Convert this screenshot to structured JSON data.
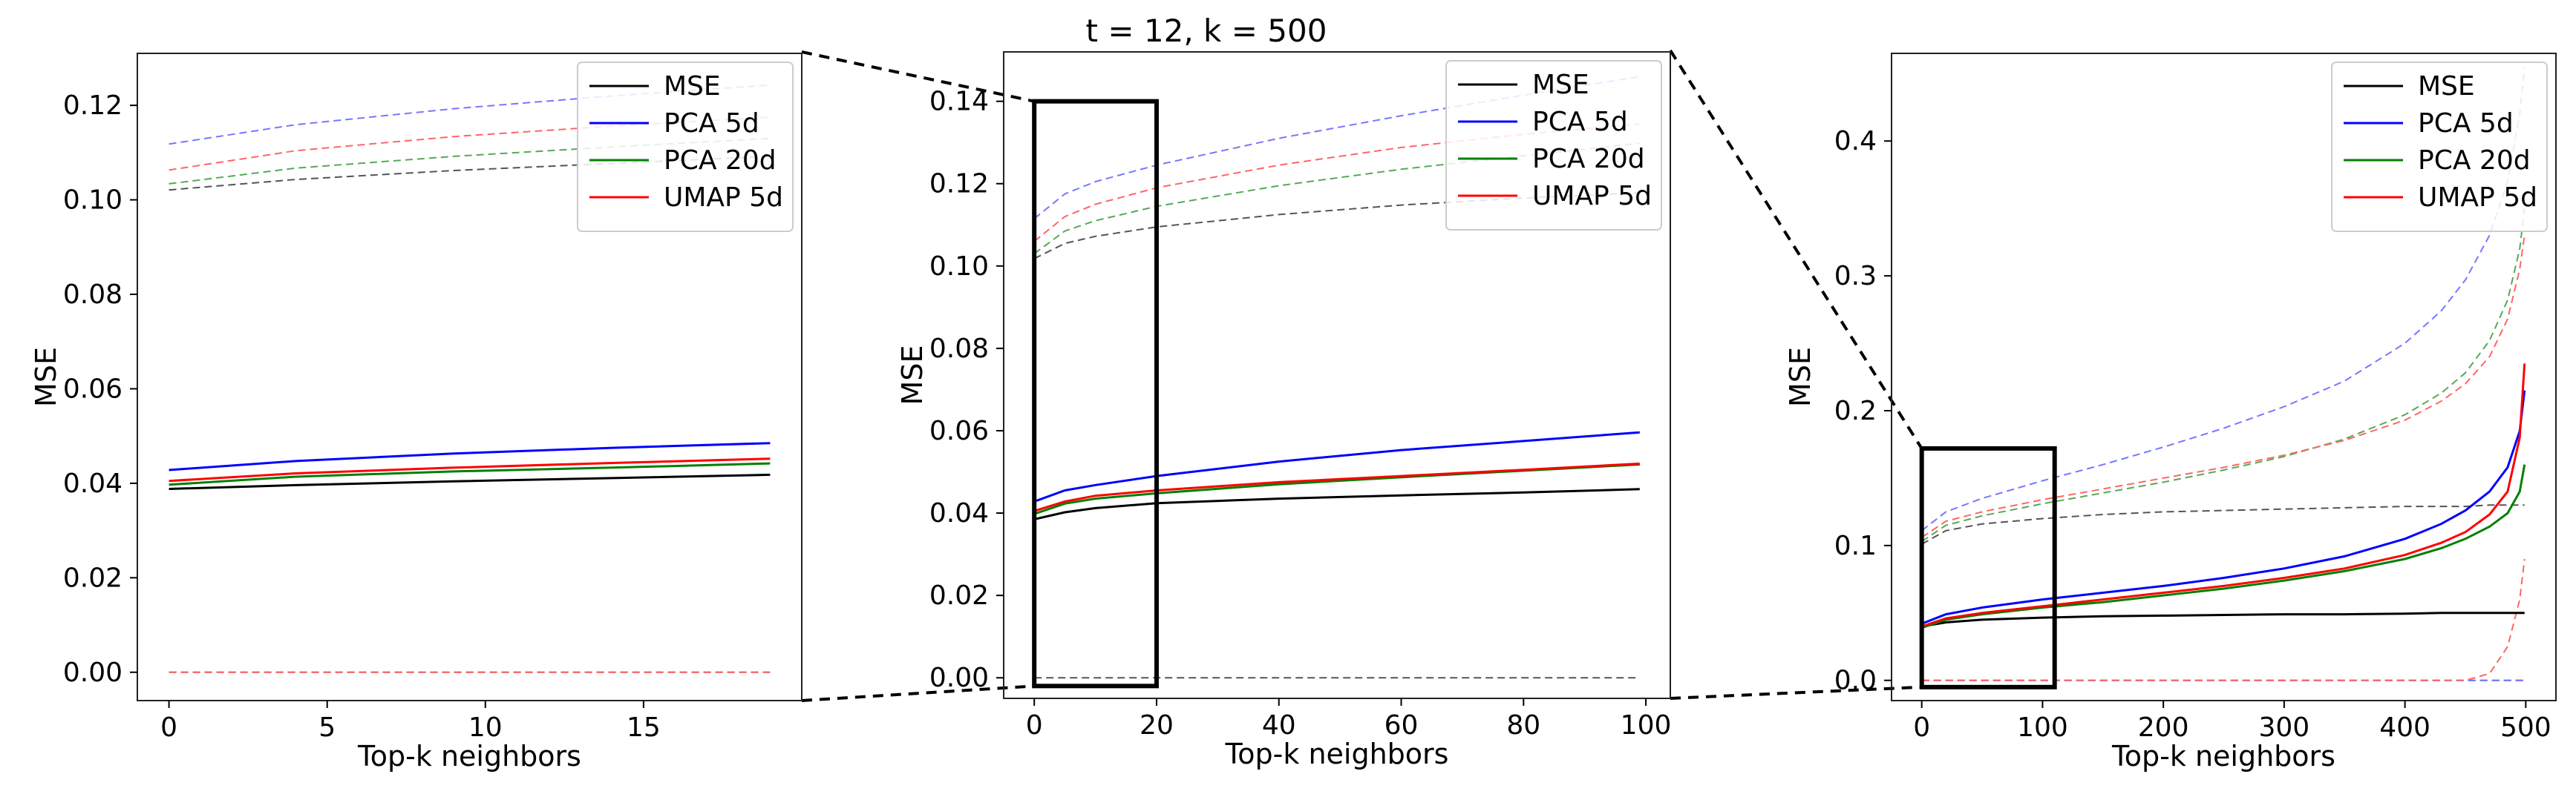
{
  "suptitle": "t = 12, k = 500",
  "legend": [
    {
      "label": "MSE",
      "color": "#000000"
    },
    {
      "label": "PCA 5d",
      "color": "#0000ff"
    },
    {
      "label": "PCA 20d",
      "color": "#008000"
    },
    {
      "label": "UMAP 5d",
      "color": "#ff0000"
    }
  ],
  "chart_data": [
    {
      "type": "line",
      "title": "",
      "xlabel": "Top-k neighbors",
      "ylabel": "MSE",
      "xlim": [
        -1,
        20
      ],
      "ylim": [
        -0.006,
        0.131
      ],
      "xticks": [
        0,
        5,
        10,
        15
      ],
      "xtick_labels": [
        "0",
        "5",
        "10",
        "15"
      ],
      "yticks": [
        0.0,
        0.02,
        0.04,
        0.06,
        0.08,
        0.1,
        0.12
      ],
      "ytick_labels": [
        "0.00",
        "0.02",
        "0.04",
        "0.06",
        "0.08",
        "0.10",
        "0.12"
      ],
      "x": [
        0,
        4,
        9,
        14,
        19
      ],
      "series": [
        {
          "name": "MSE",
          "style": "solid",
          "color": "#000000",
          "values": [
            0.0388,
            0.0396,
            0.0404,
            0.0411,
            0.0418
          ]
        },
        {
          "name": "PCA 5d",
          "style": "solid",
          "color": "#0000ff",
          "values": [
            0.0428,
            0.0447,
            0.0463,
            0.0475,
            0.0485
          ]
        },
        {
          "name": "PCA 20d",
          "style": "solid",
          "color": "#008000",
          "values": [
            0.0397,
            0.0414,
            0.0425,
            0.0433,
            0.0442
          ]
        },
        {
          "name": "UMAP 5d",
          "style": "solid",
          "color": "#ff0000",
          "values": [
            0.0405,
            0.0421,
            0.0433,
            0.0443,
            0.0452
          ]
        },
        {
          "name": "MSE (dashed)",
          "style": "dashed",
          "color": "#555555",
          "values": [
            0.1021,
            0.1043,
            0.1062,
            0.1077,
            0.1092
          ]
        },
        {
          "name": "PCA 5d (dashed)",
          "style": "dashed",
          "color": "#7777ff",
          "values": [
            0.1118,
            0.1159,
            0.1193,
            0.122,
            0.1243
          ]
        },
        {
          "name": "PCA 20d (dashed)",
          "style": "dashed",
          "color": "#55aa55",
          "values": [
            0.1034,
            0.1067,
            0.1092,
            0.1112,
            0.113
          ]
        },
        {
          "name": "UMAP 5d (dashed)",
          "style": "dashed",
          "color": "#ff6666",
          "values": [
            0.1063,
            0.1104,
            0.1134,
            0.1156,
            0.1175
          ]
        },
        {
          "name": "baseline (dashed)",
          "style": "dashed",
          "color": "#555555",
          "values": [
            0.0,
            0.0,
            0.0,
            0.0,
            0.0
          ]
        },
        {
          "name": "baseline red (dashed)",
          "style": "dashed",
          "color": "#ff6666",
          "values": [
            0.0,
            0.0,
            0.0,
            0.0,
            0.0
          ]
        }
      ]
    },
    {
      "type": "line",
      "title": "t = 12, k = 500",
      "xlabel": "Top-k neighbors",
      "ylabel": "MSE",
      "xlim": [
        -5,
        104
      ],
      "ylim": [
        -0.005,
        0.152
      ],
      "xticks": [
        0,
        20,
        40,
        60,
        80,
        100
      ],
      "xtick_labels": [
        "0",
        "20",
        "40",
        "60",
        "80",
        "100"
      ],
      "yticks": [
        0.0,
        0.02,
        0.04,
        0.06,
        0.08,
        0.1,
        0.12,
        0.14
      ],
      "ytick_labels": [
        "0.00",
        "0.02",
        "0.04",
        "0.06",
        "0.08",
        "0.10",
        "0.12",
        "0.14"
      ],
      "x": [
        0,
        5,
        10,
        20,
        40,
        60,
        80,
        99
      ],
      "series": [
        {
          "name": "MSE",
          "style": "solid",
          "color": "#000000",
          "values": [
            0.0385,
            0.0402,
            0.0412,
            0.0424,
            0.0435,
            0.0443,
            0.045,
            0.0458
          ]
        },
        {
          "name": "PCA 5d",
          "style": "solid",
          "color": "#0000ff",
          "values": [
            0.0428,
            0.0455,
            0.0468,
            0.049,
            0.0525,
            0.0553,
            0.0575,
            0.0596
          ]
        },
        {
          "name": "PCA 20d",
          "style": "solid",
          "color": "#008000",
          "values": [
            0.0398,
            0.0423,
            0.0435,
            0.0448,
            0.047,
            0.0487,
            0.0503,
            0.0518
          ]
        },
        {
          "name": "UMAP 5d",
          "style": "solid",
          "color": "#ff0000",
          "values": [
            0.0405,
            0.0428,
            0.0442,
            0.0455,
            0.0475,
            0.049,
            0.0505,
            0.052
          ]
        },
        {
          "name": "MSE (dashed)",
          "style": "dashed",
          "color": "#555555",
          "values": [
            0.1018,
            0.1055,
            0.1072,
            0.1095,
            0.1125,
            0.1148,
            0.1165,
            0.1178
          ]
        },
        {
          "name": "PCA 5d (dashed)",
          "style": "dashed",
          "color": "#7777ff",
          "values": [
            0.1115,
            0.1175,
            0.1205,
            0.1245,
            0.131,
            0.1365,
            0.1415,
            0.146
          ]
        },
        {
          "name": "PCA 20d (dashed)",
          "style": "dashed",
          "color": "#55aa55",
          "values": [
            0.103,
            0.1085,
            0.111,
            0.1145,
            0.1195,
            0.1235,
            0.1268,
            0.1298
          ]
        },
        {
          "name": "UMAP 5d (dashed)",
          "style": "dashed",
          "color": "#ff6666",
          "values": [
            0.106,
            0.112,
            0.115,
            0.119,
            0.1245,
            0.1288,
            0.132,
            0.1345
          ]
        },
        {
          "name": "baseline (dashed)",
          "style": "dashed",
          "color": "#555555",
          "values": [
            0.0,
            0.0,
            0.0,
            0.0,
            0.0,
            0.0,
            0.0,
            0.0
          ]
        }
      ],
      "zoom_box": {
        "x": [
          0,
          20
        ],
        "y": [
          -0.002,
          0.14
        ]
      }
    },
    {
      "type": "line",
      "title": "",
      "xlabel": "Top-k neighbors",
      "ylabel": "MSE",
      "xlim": [
        -25,
        525
      ],
      "ylim": [
        -0.015,
        0.465
      ],
      "xticks": [
        0,
        100,
        200,
        300,
        400,
        500
      ],
      "xtick_labels": [
        "0",
        "100",
        "200",
        "300",
        "400",
        "500"
      ],
      "yticks": [
        0.0,
        0.1,
        0.2,
        0.3,
        0.4
      ],
      "ytick_labels": [
        "0.0",
        "0.1",
        "0.2",
        "0.3",
        "0.4"
      ],
      "x": [
        0,
        20,
        50,
        100,
        150,
        200,
        250,
        300,
        350,
        400,
        430,
        450,
        470,
        485,
        495,
        499
      ],
      "series": [
        {
          "name": "MSE",
          "style": "solid",
          "color": "#000000",
          "values": [
            0.04,
            0.043,
            0.045,
            0.0465,
            0.0475,
            0.048,
            0.0485,
            0.049,
            0.049,
            0.0495,
            0.05,
            0.05,
            0.05,
            0.05,
            0.05,
            0.05
          ]
        },
        {
          "name": "PCA 5d",
          "style": "solid",
          "color": "#0000ff",
          "values": [
            0.042,
            0.049,
            0.054,
            0.06,
            0.065,
            0.07,
            0.076,
            0.083,
            0.092,
            0.105,
            0.116,
            0.126,
            0.14,
            0.158,
            0.185,
            0.215
          ]
        },
        {
          "name": "PCA 20d",
          "style": "solid",
          "color": "#008000",
          "values": [
            0.039,
            0.045,
            0.049,
            0.054,
            0.058,
            0.063,
            0.068,
            0.074,
            0.081,
            0.09,
            0.098,
            0.105,
            0.114,
            0.124,
            0.14,
            0.16
          ]
        },
        {
          "name": "UMAP 5d",
          "style": "solid",
          "color": "#ff0000",
          "values": [
            0.04,
            0.046,
            0.05,
            0.055,
            0.06,
            0.065,
            0.07,
            0.076,
            0.083,
            0.093,
            0.102,
            0.11,
            0.123,
            0.14,
            0.18,
            0.235
          ]
        },
        {
          "name": "MSE (dashed)",
          "style": "dashed",
          "color": "#555555",
          "values": [
            0.101,
            0.111,
            0.116,
            0.12,
            0.123,
            0.125,
            0.126,
            0.127,
            0.128,
            0.129,
            0.129,
            0.129,
            0.13,
            0.13,
            0.13,
            0.13
          ]
        },
        {
          "name": "PCA 5d (dashed)",
          "style": "dashed",
          "color": "#7777ff",
          "values": [
            0.111,
            0.125,
            0.135,
            0.148,
            0.16,
            0.173,
            0.187,
            0.203,
            0.222,
            0.25,
            0.274,
            0.297,
            0.33,
            0.37,
            0.42,
            0.455
          ]
        },
        {
          "name": "PCA 20d (dashed)",
          "style": "dashed",
          "color": "#55aa55",
          "values": [
            0.103,
            0.115,
            0.122,
            0.131,
            0.139,
            0.147,
            0.156,
            0.166,
            0.179,
            0.197,
            0.213,
            0.228,
            0.252,
            0.282,
            0.32,
            0.35
          ]
        },
        {
          "name": "UMAP 5d (dashed)",
          "style": "dashed",
          "color": "#ff6666",
          "values": [
            0.106,
            0.118,
            0.125,
            0.134,
            0.142,
            0.15,
            0.158,
            0.167,
            0.178,
            0.193,
            0.207,
            0.22,
            0.24,
            0.268,
            0.305,
            0.33
          ]
        },
        {
          "name": "baseline (dashed)",
          "style": "dashed",
          "color": "#555555",
          "values": [
            0.0,
            0.0,
            0.0,
            0.0,
            0.0,
            0.0,
            0.0,
            0.0,
            0.0,
            0.0,
            0.0,
            0.0,
            0.0,
            0.0,
            0.0,
            0.0
          ]
        },
        {
          "name": "baseline blue (dashed)",
          "style": "dashed",
          "color": "#7777ff",
          "values": [
            0.0,
            0.0,
            0.0,
            0.0,
            0.0,
            0.0,
            0.0,
            0.0,
            0.0,
            0.0,
            0.0,
            0.0,
            0.0,
            0.0,
            0.0,
            0.0
          ]
        },
        {
          "name": "UMAP tail (dashed)",
          "style": "dashed",
          "color": "#ff6666",
          "values": [
            0.0,
            0.0,
            0.0,
            0.0,
            0.0,
            0.0,
            0.0,
            0.0,
            0.0,
            0.0,
            0.0,
            0.0,
            0.005,
            0.025,
            0.06,
            0.09
          ]
        }
      ],
      "zoom_box": {
        "x": [
          0,
          110
        ],
        "y": [
          -0.005,
          0.172
        ]
      }
    }
  ]
}
